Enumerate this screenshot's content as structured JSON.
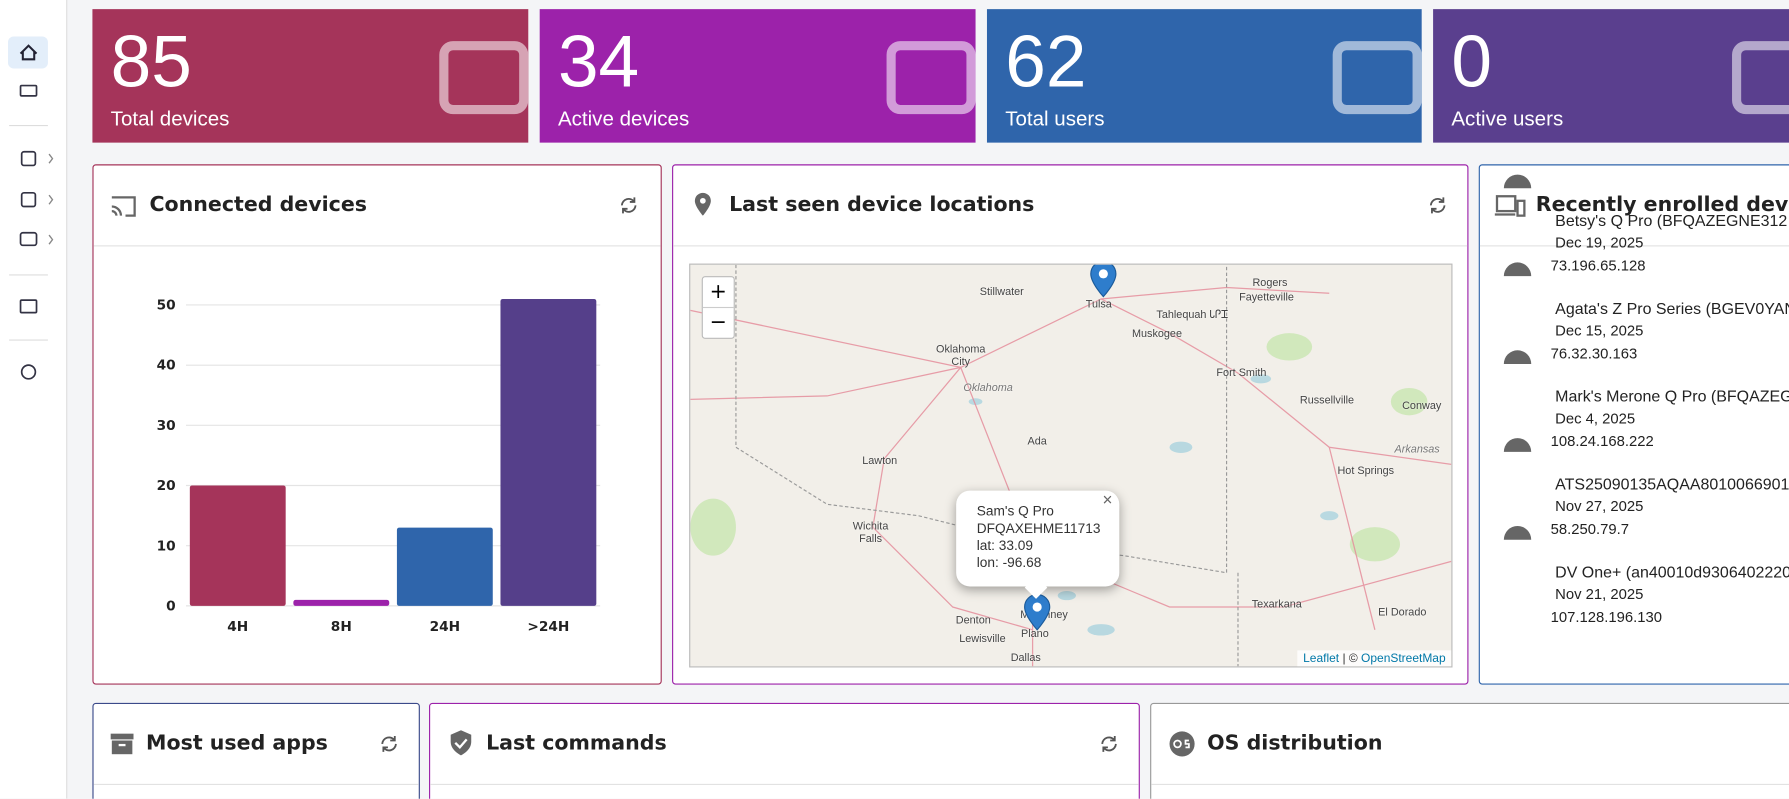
{
  "stats": [
    {
      "value": 85,
      "label": "Total devices",
      "color": "#a5345a"
    },
    {
      "value": 34,
      "label": "Active devices",
      "color": "#9c22aa"
    },
    {
      "value": 62,
      "label": "Total users",
      "color": "#2f65ab"
    },
    {
      "value": 0,
      "label": "Active users",
      "color": "#5a3f8e"
    }
  ],
  "panels": {
    "connected": "Connected devices",
    "locations": "Last seen device locations",
    "enrolled": "Recently enrolled devices",
    "apps": "Most used apps",
    "commands": "Last commands",
    "os": "OS distribution"
  },
  "chart_data": {
    "type": "bar",
    "categories": [
      "4H",
      "8H",
      "24H",
      ">24H"
    ],
    "values": [
      20,
      1,
      13,
      51
    ],
    "colors": [
      "#a5345a",
      "#9c22aa",
      "#2f65ab",
      "#553f8a"
    ],
    "ylim": [
      0,
      51
    ],
    "yticks": [
      0,
      10,
      20,
      30,
      40,
      50
    ],
    "grid": true
  },
  "map": {
    "zoom_in": "+",
    "zoom_out": "−",
    "labels": [
      "Stillwater",
      "Tulsa",
      "Rogers",
      "Fayetteville",
      "Tahlequah ᏓᎵᏆ",
      "Muskogee",
      "Oklahoma City",
      "Oklahoma",
      "Fort Smith",
      "Russellville",
      "Conway",
      "Ada",
      "Lawton",
      "Hot Springs",
      "Arkansas",
      "Wichita Falls",
      "Texarkana",
      "El Dorado",
      "Denton",
      "McKinney",
      "Lewisville",
      "Plano",
      "Dallas"
    ],
    "popup": {
      "close": "×",
      "name": "Sam's Q Pro",
      "serial": "DFQAXEHME11713",
      "lat": "lat: 33.09",
      "lon": "lon: -96.68"
    },
    "attribution": {
      "leaflet": "Leaflet",
      "separator": "| ©",
      "osm": "OpenStreetMap"
    }
  },
  "devices": [
    {
      "name": "Betsy's Q Pro (BFQAZEGNE312",
      "date": "Dec 19, 2025",
      "ip": "73.196.65.128"
    },
    {
      "name": "Agata's Z Pro Series (BGEV0YAN",
      "date": "Dec 15, 2025",
      "ip": "76.32.30.163"
    },
    {
      "name": "Mark's Merone Q Pro (BFQAZEG",
      "date": "Dec 4, 2025",
      "ip": "108.24.168.222"
    },
    {
      "name": "ATS25090135AQAA8010066901",
      "date": "Nov 27, 2025",
      "ip": "58.250.79.7"
    },
    {
      "name": "DV One+ (an40010d9306402220",
      "date": "Nov 21, 2025",
      "ip": "107.128.196.130"
    }
  ]
}
